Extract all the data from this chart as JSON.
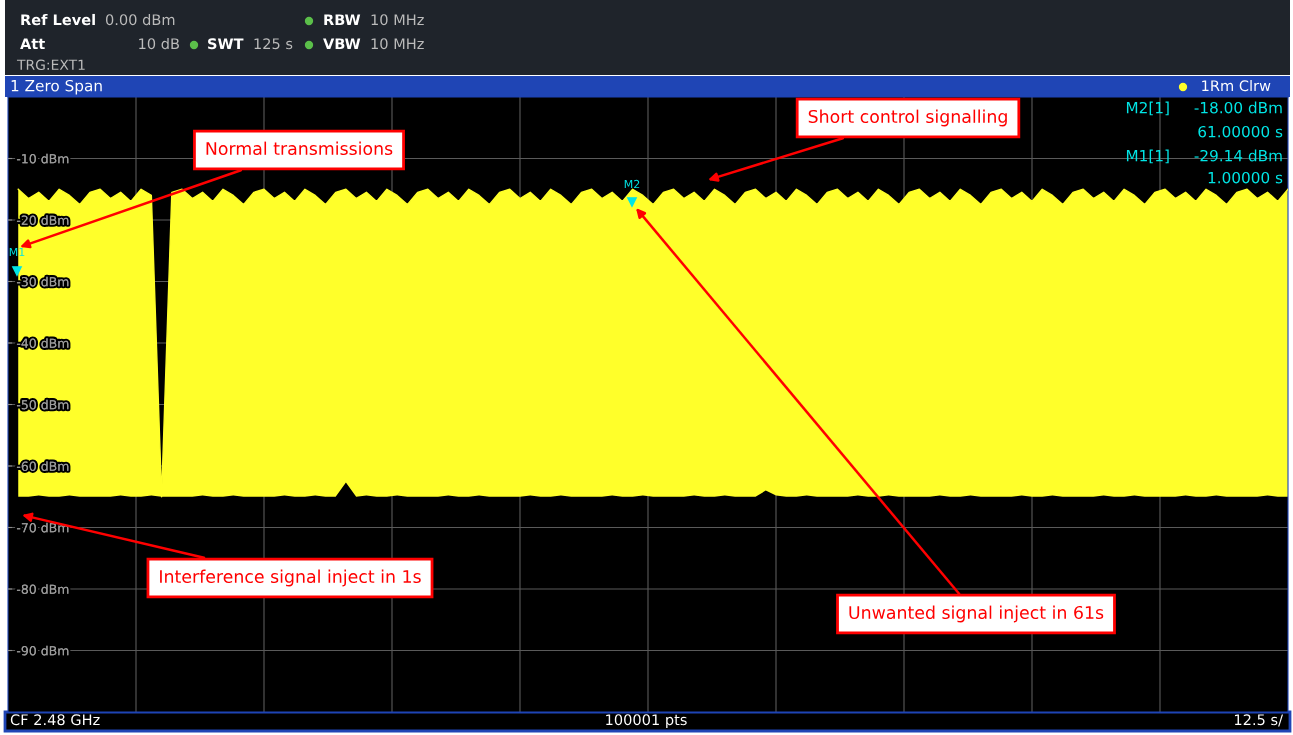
{
  "chart_data": {
    "type": "line",
    "title": "1 Zero Span",
    "categories": [
      null,
      null,
      null,
      null,
      null,
      null,
      null,
      null,
      null,
      null,
      null,
      null,
      null,
      null,
      null,
      null,
      null,
      null,
      null,
      null,
      null,
      null,
      null,
      null,
      null,
      null,
      null,
      null,
      null,
      null,
      null,
      null,
      null,
      null,
      null,
      null,
      null,
      null,
      null,
      null,
      null,
      null,
      null,
      null,
      null,
      null,
      null,
      null,
      null,
      null,
      null,
      null,
      null,
      null,
      null,
      null,
      null,
      null,
      null,
      null,
      null,
      null,
      null,
      null,
      null,
      null,
      null,
      null,
      null,
      null,
      null,
      null,
      null,
      null,
      null,
      null,
      null,
      null,
      null,
      null,
      null,
      null,
      null,
      null,
      null,
      null,
      null,
      null,
      null,
      null,
      null,
      null,
      null,
      null,
      null,
      null,
      null,
      null,
      null,
      null,
      null,
      null,
      null,
      null,
      null,
      null,
      null,
      null,
      null,
      null,
      null,
      null,
      null,
      null,
      null,
      null,
      null,
      null,
      null,
      null,
      null,
      null,
      null,
      null,
      null,
      null
    ],
    "ylim": [
      -100,
      0
    ],
    "yticks": [
      {
        "value": -10,
        "label": "-10 dBm"
      },
      {
        "value": -20,
        "label": "-20 dBm"
      },
      {
        "value": -30,
        "label": "-30 dBm"
      },
      {
        "value": -40,
        "label": "-40 dBm"
      },
      {
        "value": -50,
        "label": "-50 dBm"
      },
      {
        "value": -60,
        "label": "-60 dBm"
      },
      {
        "value": -70,
        "label": "-70 dBm"
      },
      {
        "value": -80,
        "label": "-80 dBm"
      },
      {
        "value": -90,
        "label": "-90 dBm"
      }
    ],
    "tick_labels": "y",
    "grid": true,
    "marker": "none",
    "line_style": "solid",
    "series": [
      {
        "color": "#ffff2a",
        "values": [
          null,
          -15,
          -16.5,
          -15.5,
          -17,
          -15,
          -16,
          -17.5,
          -15.5,
          -15,
          -16.5,
          -15.5,
          -17,
          -15,
          -16,
          -65,
          -15.5,
          -15,
          -16.5,
          -15.5,
          -17,
          -15,
          -16,
          -17.5,
          -15.5,
          -15,
          -16.5,
          -15.5,
          -17,
          -15,
          -16,
          -17.5,
          -15.5,
          -15,
          -16.5,
          -15.5,
          -17,
          -15,
          -16,
          -17.5,
          -15.5,
          -15,
          -16.5,
          -15.5,
          -17,
          -15,
          -16,
          -17.5,
          -15.5,
          -15,
          -16.5,
          -15.5,
          -17,
          -15,
          -16,
          -17.5,
          -15.5,
          -15,
          -16.5,
          -15.5,
          -17,
          -15,
          -16,
          -17.5,
          -15.5,
          -15,
          -16.5,
          -15.5,
          -17,
          -15,
          -16,
          -17.5,
          -15.5,
          -15,
          -16.5,
          -15.5,
          -17,
          -15,
          -16,
          -17.5,
          -15.5,
          -15,
          -16.5,
          -15.5,
          -17,
          -15,
          -16,
          -17.5,
          -15.5,
          -15,
          -16.5,
          -15.5,
          -17,
          -15,
          -16,
          -17.5,
          -15.5,
          -15,
          -16.5,
          -15.5,
          -17,
          -15,
          -16,
          -17.5,
          -15.5,
          -15,
          -16.5,
          -15.5,
          -17,
          -15,
          -16,
          -17.5,
          -15.5,
          -15,
          -16.5,
          -15.5,
          -17,
          -15,
          -16,
          -17.5,
          -15.5,
          -15,
          -16.5,
          -15.5,
          -17,
          -15
        ],
        "upper": [
          null,
          -15,
          -16.5,
          -15.5,
          -17,
          -15,
          -16,
          -17.5,
          -15.5,
          -15,
          -16.5,
          -15.5,
          -17,
          -15,
          -16,
          -65,
          -15.5,
          -15,
          -16.5,
          -15.5,
          -17,
          -15,
          -16,
          -17.5,
          -15.5,
          -15,
          -16.5,
          -15.5,
          -17,
          -15,
          -16,
          -17.5,
          -15.5,
          -15,
          -16.5,
          -15.5,
          -17,
          -15,
          -16,
          -17.5,
          -15.5,
          -15,
          -16.5,
          -15.5,
          -17,
          -15,
          -16,
          -17.5,
          -15.5,
          -15,
          -16.5,
          -15.5,
          -17,
          -15,
          -16,
          -17.5,
          -15.5,
          -15,
          -16.5,
          -15.5,
          -17,
          -15,
          -16,
          -17.5,
          -15.5,
          -15,
          -16.5,
          -15.5,
          -17,
          -15,
          -16,
          -17.5,
          -15.5,
          -15,
          -16.5,
          -15.5,
          -17,
          -15,
          -16,
          -17.5,
          -15.5,
          -15,
          -16.5,
          -15.5,
          -17,
          -15,
          -16,
          -17.5,
          -15.5,
          -15,
          -16.5,
          -15.5,
          -17,
          -15,
          -16,
          -17.5,
          -15.5,
          -15,
          -16.5,
          -15.5,
          -17,
          -15,
          -16,
          -17.5,
          -15.5,
          -15,
          -16.5,
          -15.5,
          -17,
          -15,
          -16,
          -17.5,
          -15.5,
          -15,
          -16.5,
          -15.5,
          -17,
          -15,
          -16,
          -17.5,
          -15.5,
          -15,
          -16.5,
          -15.5,
          -17,
          -15
        ],
        "lower": [
          null,
          -65,
          -65,
          -64.8,
          -65,
          -65,
          -64.8,
          -65,
          -65,
          -65,
          -65,
          -64.8,
          -65,
          -65,
          -64.8,
          -65,
          -65,
          -65,
          -65,
          -64.8,
          -65,
          -65,
          -64.8,
          -65,
          -65,
          -65,
          -65,
          -64.8,
          -65,
          -65,
          -64.8,
          -65,
          -65,
          -62.7,
          -65,
          -64.8,
          -65,
          -65,
          -64.8,
          -65,
          -65,
          -65,
          -65,
          -64.8,
          -65,
          -65,
          -64.8,
          -65,
          -65,
          -65,
          -65,
          -64.8,
          -65,
          -65,
          -64.8,
          -65,
          -65,
          -65,
          -65,
          -64.8,
          -65,
          -65,
          -64.8,
          -65,
          -65,
          -65,
          -65,
          -64.8,
          -65,
          -65,
          -64.8,
          -65,
          -65,
          -65,
          -64,
          -64.8,
          -65,
          -65,
          -64.8,
          -65,
          -65,
          -65,
          -65,
          -64.8,
          -65,
          -65,
          -64.8,
          -65,
          -65,
          -65,
          -65,
          -64.8,
          -65,
          -65,
          -64.8,
          -65,
          -65,
          -65,
          -65,
          -64.8,
          -65,
          -65,
          -64.8,
          -65,
          -65,
          -65,
          -65,
          -64.8,
          -65,
          -65,
          -64.8,
          -65,
          -65,
          -65,
          -65,
          -64.8,
          -65,
          -65,
          -64.8,
          -65,
          -65,
          -65,
          -65,
          -64.8,
          -65,
          -65
        ]
      }
    ],
    "annotations": [
      "Ref Level",
      "0.00 dBm",
      "Att",
      "10 dB",
      "SWT",
      "125 s",
      "RBW",
      "10 MHz",
      "VBW",
      "10 MHz",
      "TRG:EXT1",
      "1Rm Clrw",
      "M2[1]",
      "-18.00 dBm",
      "61.00000 s",
      "M1[1]",
      "-29.14 dBm",
      "1.00000 s",
      "CF 2.48 GHz",
      "100001 pts",
      "12.5 s/",
      "M1",
      "M2",
      "Normal transmissions",
      "Short control signalling",
      "Interference signal inject in 1s",
      "Unwanted signal inject in 61s"
    ]
  }
}
